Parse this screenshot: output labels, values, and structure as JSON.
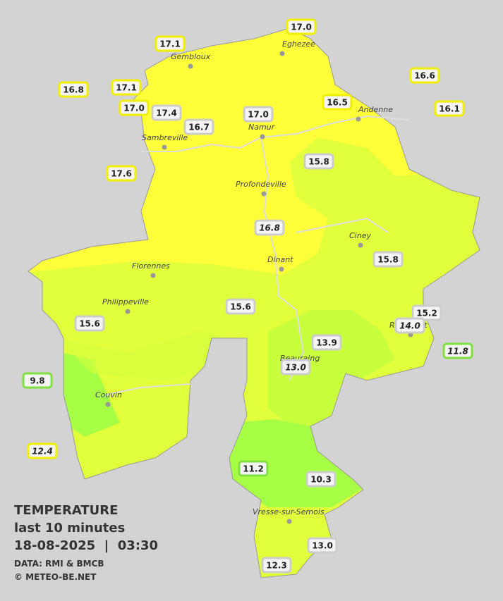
{
  "title": "TEMPERATURE",
  "subtitle": "last 10 minutes",
  "datetime": "18-08-2025  |  03:30",
  "source": "DATA: RMI & BMCB",
  "credit": "© METEO-BE.NET",
  "cities": [
    "Eghezee",
    "Gembloux",
    "Andenne",
    "Namur",
    "Sambreville",
    "Profondeville",
    "Ciney",
    "Dinant",
    "Florennes",
    "Philippeville",
    "Rochefort",
    "Beauraing",
    "Couvin",
    "Vresse-sur-Semois"
  ],
  "stations": [
    "17.0",
    "17.1",
    "16.8",
    "17.1",
    "17.0",
    "17.4",
    "16.7",
    "17.0",
    "16.5",
    "16.6",
    "16.1",
    "17.6",
    "15.8",
    "16.8",
    "15.8",
    "15.6",
    "15.6",
    "15.2",
    "14.0",
    "13.9",
    "13.0",
    "11.8",
    "9.8",
    "12.4",
    "11.2",
    "10.3",
    "13.0",
    "12.3"
  ]
}
